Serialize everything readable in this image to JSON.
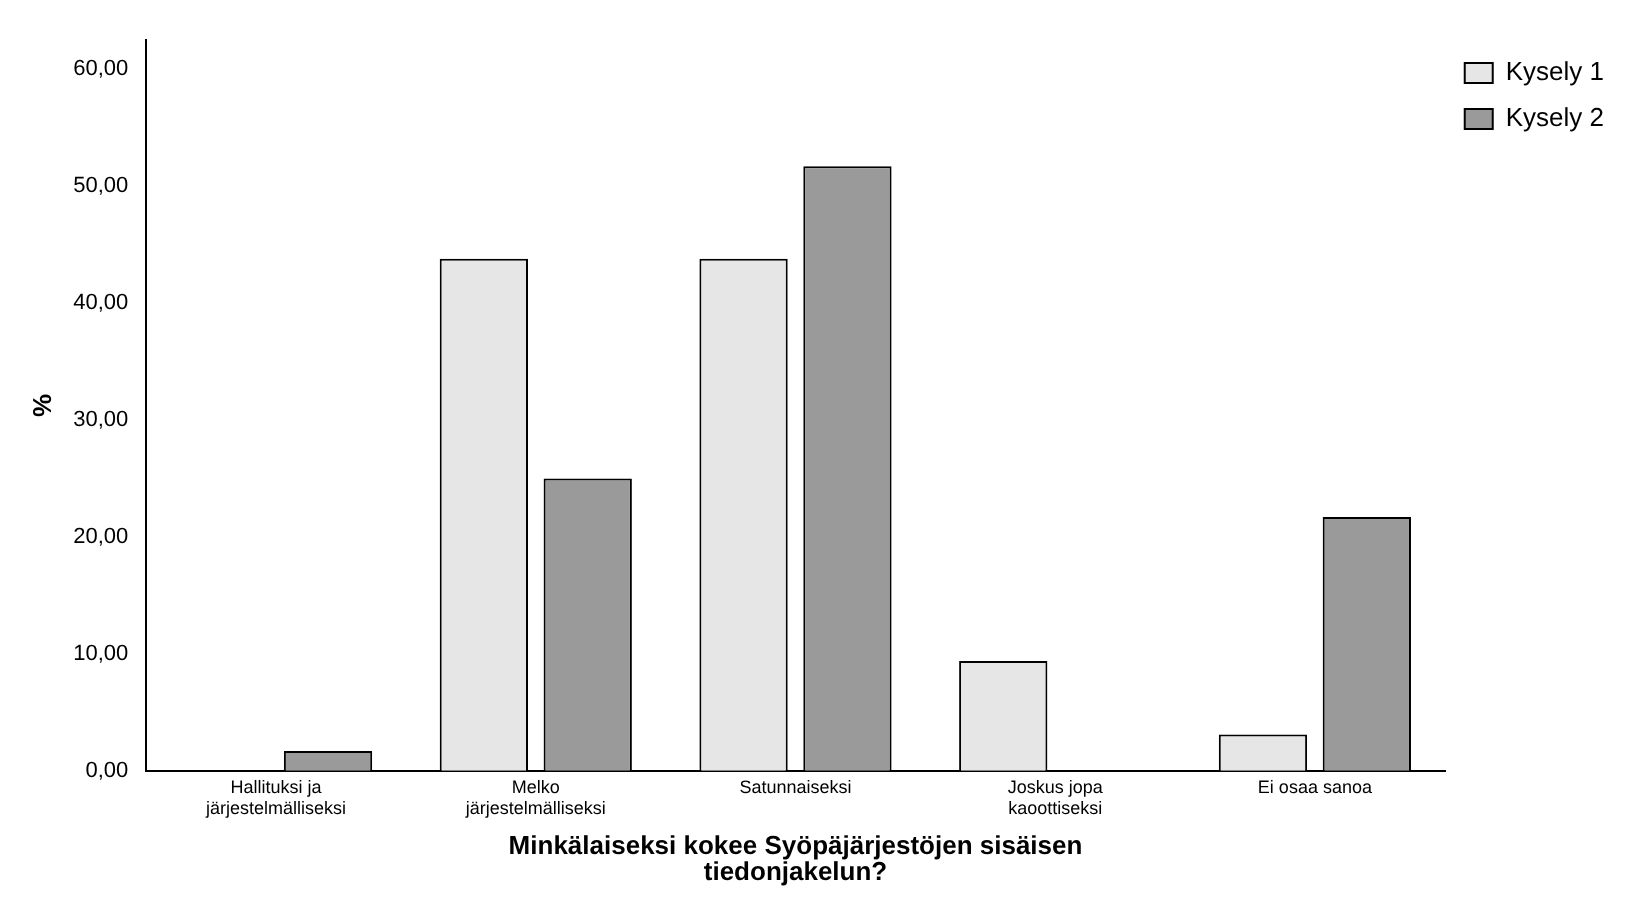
{
  "chart_data": {
    "type": "bar",
    "xlabel": "Minkälaiseksi kokee Syöpäjärjestöjen sisäisen tiedonjakelun?",
    "ylabel": "%",
    "categories": [
      "Hallituksi ja järjestelmälliseksi",
      "Melko järjestelmälliseksi",
      "Satunnaiseksi",
      "Joskus jopa kaoottiseksi",
      "Ei osaa sanoa"
    ],
    "series": [
      {
        "name": "Kysely 1",
        "color": "#e6e6e6",
        "values": [
          0,
          43.8,
          43.8,
          9.4,
          3.1
        ]
      },
      {
        "name": "Kysely 2",
        "color": "#9a9a9a",
        "values": [
          1.7,
          25.0,
          51.7,
          0,
          21.7
        ]
      }
    ],
    "ylim": [
      0,
      62.5
    ],
    "yticks": [
      {
        "value": 0,
        "label": "0,00"
      },
      {
        "value": 10,
        "label": "10,00"
      },
      {
        "value": 20,
        "label": "20,00"
      },
      {
        "value": 30,
        "label": "30,00"
      },
      {
        "value": 40,
        "label": "40,00"
      },
      {
        "value": 50,
        "label": "50,00"
      },
      {
        "value": 60,
        "label": "60,00"
      }
    ],
    "grid": false,
    "legend": "top right"
  }
}
